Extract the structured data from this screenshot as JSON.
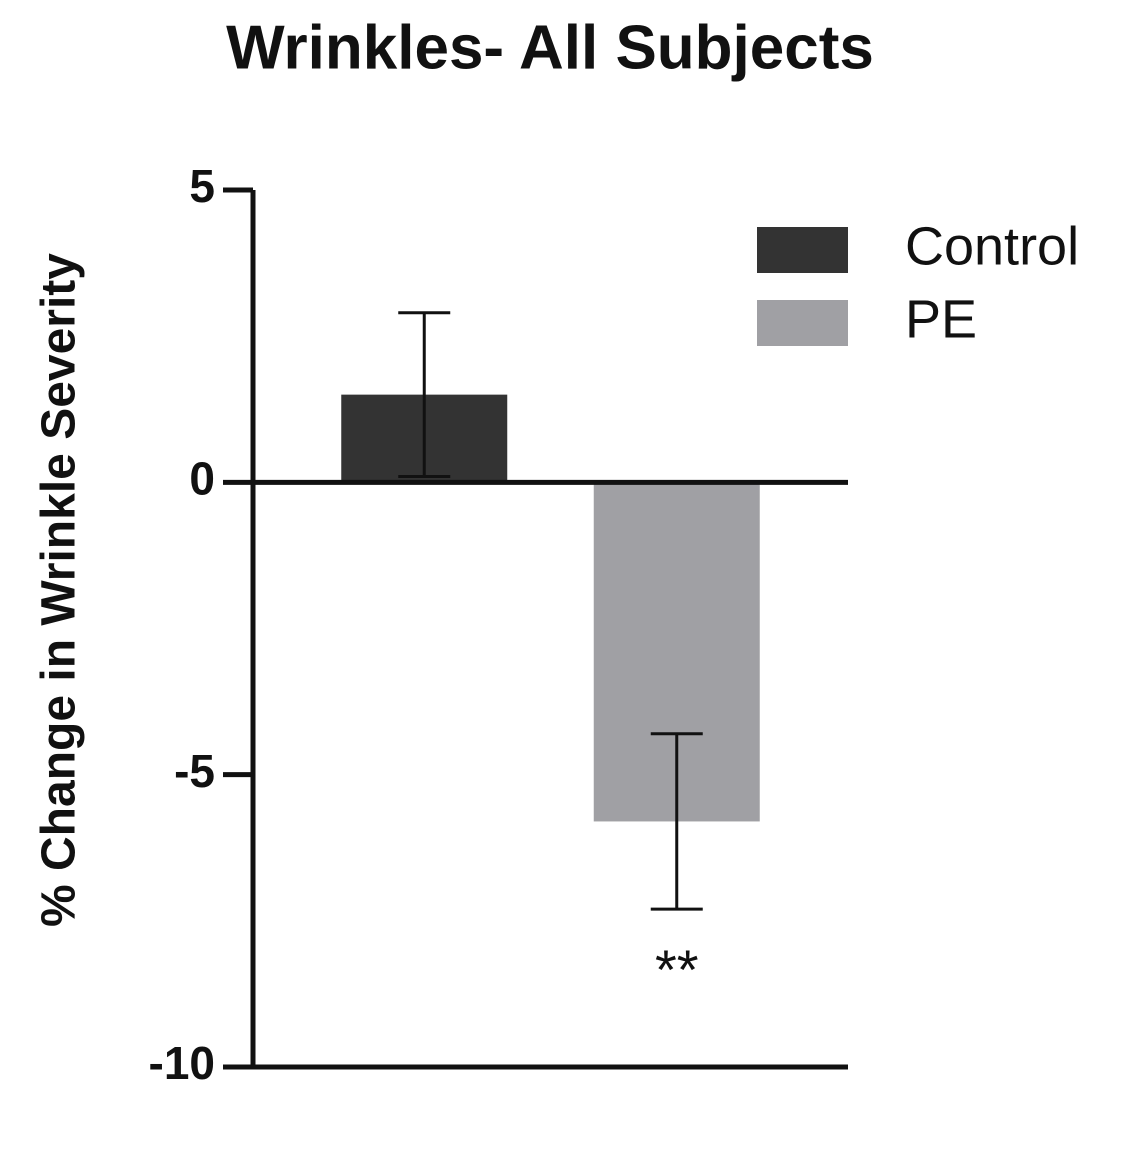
{
  "chart_data": {
    "type": "bar",
    "title": "Wrinkles- All Subjects",
    "y_label": "% Change in Wrinkle Severity",
    "series": [
      {
        "name": "Control",
        "color": "#333333",
        "values": [
          1.5
        ],
        "errors": [
          1.4
        ]
      },
      {
        "name": "PE",
        "color": "#a0a0a4",
        "values": [
          -5.8
        ],
        "errors": [
          1.5
        ]
      }
    ],
    "annotations": [
      "**"
    ],
    "ylim": [
      -10,
      5
    ],
    "yticks": [
      5,
      0,
      -5,
      -10
    ],
    "legend": "upper-right"
  }
}
